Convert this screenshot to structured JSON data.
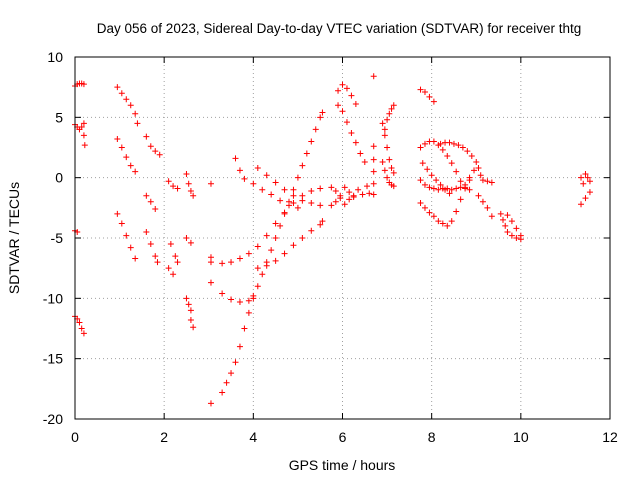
{
  "chart_data": {
    "type": "scatter",
    "title": "Day 056 of 2023, Sidereal Day-to-day VTEC variation (SDTVAR) for receiver thtg",
    "xlabel": "GPS time / hours",
    "ylabel": "SDTVAR / TECUs",
    "xlim": [
      0,
      12
    ],
    "ylim": [
      -20,
      10
    ],
    "x_ticks": [
      "0",
      "2",
      "4",
      "6",
      "8",
      "10",
      "12"
    ],
    "y_ticks": [
      "10",
      "5",
      "0",
      "-5",
      "-10",
      "-15",
      "-20"
    ],
    "grid": true,
    "legend": "none",
    "marker": "plus",
    "color": "#ff0000",
    "series": [
      {
        "values": [
          [
            0.0,
            7.6
          ],
          [
            0.05,
            7.75
          ],
          [
            0.1,
            7.8
          ],
          [
            0.15,
            7.8
          ],
          [
            0.2,
            7.75
          ]
        ]
      },
      {
        "values": [
          [
            0.0,
            4.4
          ],
          [
            0.05,
            4.2
          ],
          [
            0.1,
            4.0
          ],
          [
            0.15,
            4.2
          ],
          [
            0.2,
            4.5
          ],
          [
            0.2,
            3.5
          ],
          [
            0.22,
            2.7
          ]
        ]
      },
      {
        "values": [
          [
            0.0,
            -4.4
          ],
          [
            0.05,
            -4.5
          ]
        ]
      },
      {
        "values": [
          [
            0.0,
            -11.5
          ],
          [
            0.05,
            -11.7
          ],
          [
            0.1,
            -12.0
          ],
          [
            0.15,
            -12.5
          ],
          [
            0.2,
            -12.9
          ]
        ]
      },
      {
        "values": [
          [
            0.95,
            7.5
          ],
          [
            1.05,
            7.0
          ],
          [
            1.15,
            6.5
          ],
          [
            1.25,
            6.0
          ],
          [
            1.35,
            5.3
          ],
          [
            1.4,
            4.5
          ]
        ]
      },
      {
        "values": [
          [
            0.95,
            3.2
          ],
          [
            1.05,
            2.5
          ],
          [
            1.15,
            1.7
          ],
          [
            1.25,
            1.0
          ],
          [
            1.35,
            0.5
          ]
        ]
      },
      {
        "values": [
          [
            0.95,
            -3.0
          ],
          [
            1.05,
            -3.8
          ],
          [
            1.15,
            -4.8
          ],
          [
            1.25,
            -5.8
          ],
          [
            1.35,
            -6.7
          ]
        ]
      },
      {
        "values": [
          [
            1.6,
            3.4
          ],
          [
            1.7,
            2.6
          ],
          [
            1.8,
            2.2
          ],
          [
            1.9,
            1.9
          ]
        ]
      },
      {
        "values": [
          [
            1.6,
            -1.5
          ],
          [
            1.7,
            -2.0
          ],
          [
            1.8,
            -2.6
          ]
        ]
      },
      {
        "values": [
          [
            1.6,
            -4.5
          ],
          [
            1.7,
            -5.5
          ],
          [
            1.8,
            -6.5
          ],
          [
            1.85,
            -7.0
          ]
        ]
      },
      {
        "values": [
          [
            2.1,
            -0.3
          ],
          [
            2.2,
            -0.7
          ],
          [
            2.3,
            -0.9
          ]
        ]
      },
      {
        "values": [
          [
            2.15,
            -5.5
          ],
          [
            2.25,
            -6.5
          ],
          [
            2.3,
            -7.0
          ]
        ]
      },
      {
        "values": [
          [
            2.1,
            -7.5
          ],
          [
            2.2,
            -8.0
          ]
        ]
      },
      {
        "values": [
          [
            2.5,
            0.3
          ],
          [
            2.55,
            -0.5
          ],
          [
            2.6,
            -1.1
          ],
          [
            2.65,
            -1.5
          ]
        ]
      },
      {
        "values": [
          [
            2.5,
            -5.0
          ],
          [
            2.6,
            -5.4
          ]
        ]
      },
      {
        "values": [
          [
            2.5,
            -10.0
          ],
          [
            2.55,
            -10.5
          ],
          [
            2.6,
            -11.0
          ],
          [
            2.6,
            -11.8
          ],
          [
            2.65,
            -12.4
          ]
        ]
      },
      {
        "values": [
          [
            3.05,
            -0.5
          ]
        ]
      },
      {
        "values": [
          [
            3.05,
            -6.6
          ],
          [
            3.05,
            -7.0
          ]
        ]
      },
      {
        "values": [
          [
            3.05,
            -8.7
          ]
        ]
      },
      {
        "values": [
          [
            3.05,
            -18.7
          ]
        ]
      },
      {
        "values": [
          [
            3.3,
            -17.8
          ],
          [
            3.4,
            -17.0
          ],
          [
            3.5,
            -16.2
          ],
          [
            3.6,
            -15.3
          ],
          [
            3.7,
            -14.0
          ],
          [
            3.8,
            -12.5
          ],
          [
            3.9,
            -11.2
          ],
          [
            4.0,
            -10.0
          ],
          [
            4.1,
            -9.0
          ],
          [
            4.2,
            -8.0
          ],
          [
            4.3,
            -7.0
          ],
          [
            4.4,
            -6.0
          ],
          [
            4.5,
            -5.0
          ],
          [
            4.6,
            -4.0
          ],
          [
            4.7,
            -3.0
          ],
          [
            4.8,
            -2.0
          ],
          [
            4.9,
            -1.0
          ],
          [
            5.0,
            0.0
          ],
          [
            5.1,
            1.0
          ],
          [
            5.2,
            2.0
          ],
          [
            5.3,
            3.0
          ],
          [
            5.4,
            4.0
          ],
          [
            5.5,
            5.0
          ],
          [
            5.55,
            5.4
          ]
        ]
      },
      {
        "values": [
          [
            3.3,
            -9.6
          ],
          [
            3.5,
            -10.1
          ],
          [
            3.7,
            -10.3
          ],
          [
            3.9,
            -10.2
          ],
          [
            4.0,
            -9.8
          ]
        ]
      },
      {
        "values": [
          [
            3.3,
            -7.1
          ],
          [
            3.5,
            -7.0
          ],
          [
            3.7,
            -6.7
          ],
          [
            3.9,
            -6.3
          ],
          [
            4.1,
            -5.7
          ],
          [
            4.3,
            -4.8
          ],
          [
            4.5,
            -3.8
          ],
          [
            4.7,
            -2.9
          ],
          [
            4.9,
            -2.1
          ],
          [
            5.1,
            -1.5
          ],
          [
            5.3,
            -1.1
          ],
          [
            5.5,
            -0.9
          ]
        ]
      },
      {
        "values": [
          [
            3.6,
            1.6
          ],
          [
            3.7,
            0.6
          ],
          [
            3.8,
            -0.1
          ],
          [
            4.0,
            -0.5
          ],
          [
            4.2,
            -1.0
          ],
          [
            4.4,
            -1.4
          ],
          [
            4.6,
            -1.9
          ],
          [
            4.8,
            -2.3
          ],
          [
            5.0,
            -2.5
          ]
        ]
      },
      {
        "values": [
          [
            4.1,
            0.8
          ],
          [
            4.3,
            0.2
          ],
          [
            4.5,
            -0.4
          ],
          [
            4.7,
            -1.0
          ],
          [
            4.9,
            -1.5
          ],
          [
            5.1,
            -1.9
          ],
          [
            5.3,
            -2.1
          ],
          [
            5.5,
            -2.3
          ]
        ]
      },
      {
        "values": [
          [
            4.1,
            -7.5
          ],
          [
            4.3,
            -7.3
          ],
          [
            4.5,
            -6.9
          ],
          [
            4.7,
            -6.3
          ],
          [
            4.9,
            -5.6
          ],
          [
            5.1,
            -5.0
          ],
          [
            5.3,
            -4.4
          ],
          [
            5.5,
            -3.9
          ],
          [
            5.55,
            -3.6
          ]
        ]
      },
      {
        "values": [
          [
            5.9,
            7.2
          ],
          [
            6.0,
            7.7
          ],
          [
            6.1,
            7.4
          ],
          [
            6.2,
            6.8
          ],
          [
            6.3,
            6.1
          ]
        ]
      },
      {
        "values": [
          [
            5.9,
            6.0
          ],
          [
            6.0,
            5.5
          ],
          [
            6.1,
            4.6
          ],
          [
            6.2,
            3.7
          ],
          [
            6.3,
            2.9
          ],
          [
            6.4,
            2.0
          ],
          [
            6.5,
            1.3
          ]
        ]
      },
      {
        "values": [
          [
            5.75,
            -0.8
          ],
          [
            5.85,
            -1.1
          ],
          [
            5.95,
            -1.5
          ],
          [
            6.05,
            -0.8
          ],
          [
            6.15,
            -1.2
          ],
          [
            6.25,
            -1.6
          ],
          [
            6.35,
            -1.0
          ],
          [
            6.45,
            -1.4
          ],
          [
            6.55,
            -0.7
          ],
          [
            6.6,
            -1.3
          ]
        ]
      },
      {
        "values": [
          [
            5.75,
            -2.3
          ],
          [
            5.85,
            -2.0
          ],
          [
            5.95,
            -1.7
          ],
          [
            6.05,
            -2.2
          ],
          [
            6.15,
            -1.8
          ],
          [
            6.25,
            -1.5
          ]
        ]
      },
      {
        "values": [
          [
            6.7,
            8.4
          ]
        ]
      },
      {
        "values": [
          [
            6.7,
            2.6
          ],
          [
            6.7,
            1.5
          ],
          [
            6.7,
            0.5
          ],
          [
            6.7,
            -0.5
          ],
          [
            6.7,
            -1.4
          ]
        ]
      },
      {
        "values": [
          [
            6.9,
            4.5
          ],
          [
            6.95,
            3.5
          ],
          [
            7.0,
            2.5
          ],
          [
            7.05,
            1.5
          ],
          [
            7.1,
            0.8
          ],
          [
            7.15,
            0.4
          ]
        ]
      },
      {
        "values": [
          [
            6.9,
            1.3
          ],
          [
            6.95,
            0.6
          ],
          [
            7.0,
            0.0
          ],
          [
            7.05,
            -0.4
          ],
          [
            7.1,
            -0.6
          ],
          [
            7.15,
            -0.7
          ]
        ]
      },
      {
        "values": [
          [
            6.95,
            4.0
          ],
          [
            7.0,
            4.8
          ],
          [
            7.05,
            5.3
          ],
          [
            7.1,
            5.7
          ],
          [
            7.15,
            6.0
          ]
        ]
      },
      {
        "values": [
          [
            7.75,
            7.3
          ],
          [
            7.85,
            7.1
          ],
          [
            7.95,
            6.7
          ],
          [
            8.05,
            6.3
          ]
        ]
      },
      {
        "values": [
          [
            7.75,
            2.5
          ],
          [
            7.85,
            2.8
          ],
          [
            7.95,
            3.0
          ],
          [
            8.05,
            3.0
          ],
          [
            8.15,
            2.7
          ],
          [
            8.25,
            2.3
          ],
          [
            8.35,
            1.8
          ],
          [
            8.45,
            1.2
          ],
          [
            8.55,
            0.5
          ],
          [
            8.65,
            -0.3
          ],
          [
            8.75,
            -0.9
          ],
          [
            8.85,
            -1.0
          ]
        ]
      },
      {
        "values": [
          [
            7.75,
            -0.2
          ],
          [
            7.85,
            -0.6
          ],
          [
            7.95,
            -0.8
          ],
          [
            8.05,
            -0.9
          ],
          [
            8.15,
            -1.0
          ],
          [
            8.25,
            -0.9
          ],
          [
            8.35,
            -0.9
          ],
          [
            8.45,
            -1.0
          ],
          [
            8.55,
            -0.9
          ],
          [
            8.65,
            -0.8
          ],
          [
            8.75,
            -0.6
          ],
          [
            8.85,
            -0.2
          ]
        ]
      },
      {
        "values": [
          [
            7.75,
            -2.1
          ],
          [
            7.85,
            -2.5
          ],
          [
            7.95,
            -2.9
          ],
          [
            8.05,
            -3.2
          ],
          [
            8.15,
            -3.6
          ],
          [
            8.25,
            -3.8
          ],
          [
            8.35,
            -4.0
          ],
          [
            8.45,
            -3.6
          ],
          [
            8.55,
            -2.8
          ],
          [
            8.65,
            -1.8
          ],
          [
            8.75,
            -0.8
          ],
          [
            8.85,
            0.0
          ],
          [
            8.95,
            0.6
          ]
        ]
      },
      {
        "values": [
          [
            7.8,
            1.2
          ],
          [
            7.9,
            0.7
          ],
          [
            8.0,
            0.2
          ],
          [
            8.1,
            -0.2
          ],
          [
            8.2,
            -0.6
          ],
          [
            8.3,
            -1.0
          ],
          [
            8.4,
            -1.3
          ]
        ]
      },
      {
        "values": [
          [
            8.2,
            2.8
          ],
          [
            8.3,
            2.9
          ],
          [
            8.4,
            2.9
          ],
          [
            8.5,
            2.8
          ],
          [
            8.6,
            2.7
          ],
          [
            8.7,
            2.5
          ],
          [
            8.8,
            2.2
          ],
          [
            8.9,
            1.8
          ],
          [
            9.0,
            1.3
          ]
        ]
      },
      {
        "values": [
          [
            9.05,
            0.8
          ],
          [
            9.1,
            0.2
          ],
          [
            9.15,
            -0.2
          ],
          [
            9.25,
            -0.3
          ],
          [
            9.35,
            -0.4
          ]
        ]
      },
      {
        "values": [
          [
            9.05,
            -1.5
          ],
          [
            9.15,
            -2.0
          ],
          [
            9.25,
            -2.5
          ],
          [
            9.35,
            -3.2
          ]
        ]
      },
      {
        "values": [
          [
            9.7,
            -3.1
          ],
          [
            9.8,
            -3.6
          ],
          [
            9.9,
            -4.2
          ],
          [
            10.0,
            -4.8
          ]
        ]
      },
      {
        "values": [
          [
            9.7,
            -4.5
          ],
          [
            9.8,
            -4.8
          ],
          [
            9.9,
            -5.0
          ],
          [
            10.0,
            -5.1
          ]
        ]
      },
      {
        "values": [
          [
            9.55,
            -3.0
          ],
          [
            9.6,
            -3.5
          ],
          [
            9.65,
            -4.0
          ]
        ]
      },
      {
        "values": [
          [
            11.35,
            0.0
          ],
          [
            11.4,
            -0.5
          ],
          [
            11.45,
            0.3
          ],
          [
            11.5,
            0.0
          ],
          [
            11.55,
            -0.3
          ]
        ]
      },
      {
        "values": [
          [
            11.35,
            -2.2
          ],
          [
            11.45,
            -1.7
          ],
          [
            11.55,
            -1.2
          ]
        ]
      }
    ]
  }
}
